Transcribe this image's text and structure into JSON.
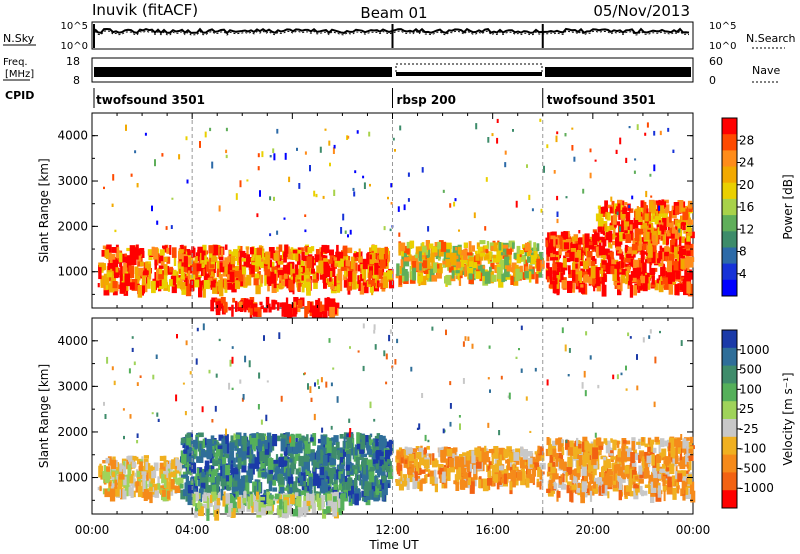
{
  "header": {
    "station": "Inuvik (fitACF)",
    "beam": "Beam 01",
    "date": "05/Nov/2013"
  },
  "nsky_panel": {
    "left_label": "N.Sky",
    "right_label": "N.Search",
    "left_ticks": [
      "10^5",
      "10^0"
    ],
    "right_ticks": [
      "10^5",
      "10^0"
    ]
  },
  "freq_panel": {
    "left_label_line1": "Freq.",
    "left_label_line2": "[MHz]",
    "right_label": "Nave",
    "left_ticks": [
      "18",
      "8"
    ],
    "right_ticks": [
      "60",
      "0"
    ]
  },
  "cpid_panel": {
    "label": "CPID",
    "segments": [
      {
        "name": "twofsound 3501",
        "start_hour": 0,
        "end_hour": 12
      },
      {
        "name": "rbsp 200",
        "start_hour": 12,
        "end_hour": 18
      },
      {
        "name": "twofsound 3501",
        "start_hour": 18,
        "end_hour": 24
      }
    ]
  },
  "x_axis": {
    "title": "Time UT",
    "ticks": [
      "00:00",
      "04:00",
      "08:00",
      "12:00",
      "16:00",
      "20:00",
      "00:00"
    ]
  },
  "chart_data": [
    {
      "type": "heatmap",
      "panel": "power",
      "ylabel": "Slant Range [km]",
      "yticks": [
        "1000",
        "2000",
        "3000",
        "4000"
      ],
      "ylim": [
        200,
        4500
      ],
      "xlim_hours": [
        0,
        24
      ],
      "colorbar_label": "Power [dB]",
      "colorbar_ticks": [
        "28",
        "24",
        "20",
        "16",
        "12",
        "8",
        "4"
      ],
      "colorbar_colors": [
        "#ff0000",
        "#ff4a00",
        "#ff8c1a",
        "#f2a900",
        "#ead000",
        "#a8d24a",
        "#5fae5a",
        "#3d8c6a",
        "#2c6aa8",
        "#1632d8",
        "#0000ff"
      ],
      "echo_bands": [
        {
          "x_hours": [
            0.2,
            11.9
          ],
          "y_km": [
            700,
            1600
          ],
          "level": 22
        },
        {
          "x_hours": [
            12.1,
            17.9
          ],
          "y_km": [
            900,
            1700
          ],
          "level": 16
        },
        {
          "x_hours": [
            18.1,
            23.9
          ],
          "y_km": [
            700,
            1900
          ],
          "level": 26
        },
        {
          "x_hours": [
            4.6,
            9.8
          ],
          "y_km": [
            200,
            450
          ],
          "level": 28
        },
        {
          "x_hours": [
            20.0,
            23.8
          ],
          "y_km": [
            1800,
            2600
          ],
          "level": 22
        }
      ]
    },
    {
      "type": "heatmap",
      "panel": "velocity",
      "ylabel": "Slant Range [km]",
      "yticks": [
        "1000",
        "2000",
        "3000",
        "4000"
      ],
      "ylim": [
        200,
        4500
      ],
      "xlim_hours": [
        0,
        24
      ],
      "colorbar_label": "Velocity [m s^-1]",
      "colorbar_ticks": [
        "1000",
        "500",
        "100",
        "25",
        "-25",
        "-100",
        "-500",
        "-1000"
      ],
      "colorbar_colors": [
        "#1b3aa8",
        "#2f6e99",
        "#3f8c6b",
        "#55b05a",
        "#9fd35a",
        "#c8c8c8",
        "#f0b020",
        "#f58a1a",
        "#f26212",
        "#ff0000"
      ],
      "echo_bands": [
        {
          "x_hours": [
            0.2,
            3.5
          ],
          "y_km": [
            700,
            1500
          ],
          "velocity": -100
        },
        {
          "x_hours": [
            3.5,
            11.9
          ],
          "y_km": [
            600,
            2000
          ],
          "velocity": 200
        },
        {
          "x_hours": [
            12.1,
            17.9
          ],
          "y_km": [
            900,
            1700
          ],
          "velocity": -300
        },
        {
          "x_hours": [
            18.1,
            23.9
          ],
          "y_km": [
            700,
            1900
          ],
          "velocity": -200
        },
        {
          "x_hours": [
            4.0,
            10.0
          ],
          "y_km": [
            300,
            700
          ],
          "velocity": 0
        }
      ]
    }
  ]
}
